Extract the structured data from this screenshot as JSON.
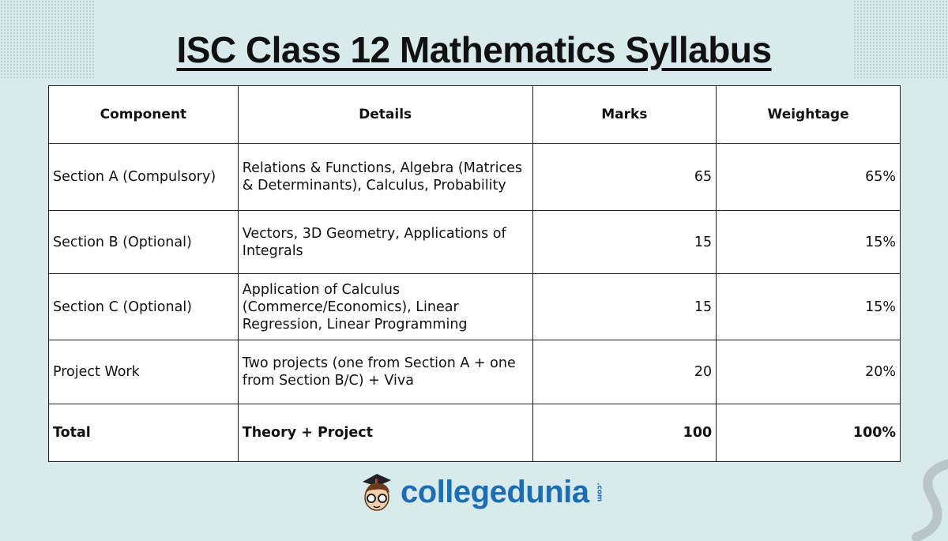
{
  "title": "ISC Class 12 Mathematics Syllabus",
  "table": {
    "headers": [
      "Component",
      "Details",
      "Marks",
      "Weightage"
    ],
    "rows": [
      [
        "Section A (Compulsory)",
        "Relations & Functions, Algebra (Matrices & Determinants), Calculus, Probability",
        "65",
        "65%"
      ],
      [
        "Section B (Optional)",
        "Vectors, 3D Geometry, Applications of Integrals",
        "15",
        "15%"
      ],
      [
        "Section C (Optional)",
        "Application of Calculus (Commerce/Economics), Linear Regression, Linear Programming",
        "15",
        "15%"
      ],
      [
        "Project Work",
        "Two projects (one from Section A + one from Section B/C) + Viva",
        "20",
        "20%"
      ]
    ],
    "total": [
      "Total",
      "Theory + Project",
      "100",
      "100%"
    ]
  },
  "logo": {
    "name": "collegedunia",
    "suffix": ".com",
    "color": "#1d6db3"
  }
}
